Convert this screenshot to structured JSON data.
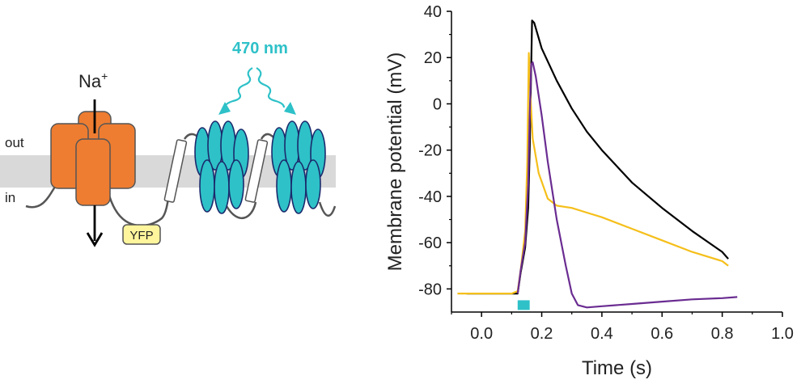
{
  "diagram": {
    "wavelength_label": "470 nm",
    "ion_label": "Na",
    "ion_charge": "+",
    "out_label": "out",
    "in_label": "in",
    "tag_label": "YFP",
    "colors": {
      "channel": "#ee7d31",
      "opsin": "#2ec1c8",
      "opsin_stroke": "#1a2a6c",
      "membrane": "#d9d9d9",
      "tag": "#fff59d",
      "light": "#2ec1c8"
    }
  },
  "chart_data": {
    "type": "line",
    "xlabel": "Time (s)",
    "ylabel": "Membrane potential (mV)",
    "xlim": [
      -0.1,
      1.0
    ],
    "ylim": [
      -90,
      40
    ],
    "xticks": [
      0.0,
      0.2,
      0.4,
      0.6,
      0.8,
      1.0
    ],
    "xtick_labels": [
      "0.0",
      "0.2",
      "0.4",
      "0.6",
      "0.8",
      "1.0"
    ],
    "yticks": [
      -80,
      -60,
      -40,
      -20,
      0,
      20,
      40
    ],
    "ytick_labels": [
      "-80",
      "-60",
      "-40",
      "-20",
      "0",
      "20",
      "40"
    ],
    "grid": false,
    "stimulus": {
      "start": 0.12,
      "end": 0.16,
      "y": -87,
      "color": "#2ec1c8"
    },
    "series": [
      {
        "color": "#000000",
        "points": [
          [
            -0.05,
            -82
          ],
          [
            0.0,
            -82
          ],
          [
            0.05,
            -82
          ],
          [
            0.1,
            -82
          ],
          [
            0.12,
            -82
          ],
          [
            0.13,
            -73
          ],
          [
            0.145,
            -62
          ],
          [
            0.155,
            -45
          ],
          [
            0.16,
            -20
          ],
          [
            0.165,
            15
          ],
          [
            0.168,
            36
          ],
          [
            0.175,
            35
          ],
          [
            0.2,
            24
          ],
          [
            0.25,
            10
          ],
          [
            0.3,
            -2
          ],
          [
            0.35,
            -12
          ],
          [
            0.4,
            -20
          ],
          [
            0.5,
            -34
          ],
          [
            0.6,
            -45
          ],
          [
            0.7,
            -55
          ],
          [
            0.8,
            -64
          ],
          [
            0.82,
            -67
          ]
        ]
      },
      {
        "color": "#f5bf1a",
        "points": [
          [
            -0.08,
            -82
          ],
          [
            0.0,
            -82
          ],
          [
            0.05,
            -82
          ],
          [
            0.1,
            -82
          ],
          [
            0.12,
            -81
          ],
          [
            0.13,
            -72
          ],
          [
            0.145,
            -55
          ],
          [
            0.152,
            -25
          ],
          [
            0.157,
            22
          ],
          [
            0.162,
            5
          ],
          [
            0.17,
            -15
          ],
          [
            0.19,
            -30
          ],
          [
            0.22,
            -41
          ],
          [
            0.25,
            -44
          ],
          [
            0.3,
            -45
          ],
          [
            0.35,
            -47
          ],
          [
            0.4,
            -49
          ],
          [
            0.5,
            -54
          ],
          [
            0.6,
            -59
          ],
          [
            0.7,
            -64
          ],
          [
            0.8,
            -68
          ],
          [
            0.82,
            -70
          ]
        ]
      },
      {
        "color": "#6a2c91",
        "points": [
          [
            0.12,
            -82
          ],
          [
            0.13,
            -72
          ],
          [
            0.145,
            -60
          ],
          [
            0.155,
            -35
          ],
          [
            0.16,
            -5
          ],
          [
            0.165,
            17
          ],
          [
            0.17,
            18
          ],
          [
            0.18,
            12
          ],
          [
            0.2,
            -5
          ],
          [
            0.22,
            -25
          ],
          [
            0.25,
            -50
          ],
          [
            0.28,
            -70
          ],
          [
            0.3,
            -82
          ],
          [
            0.32,
            -87
          ],
          [
            0.35,
            -88
          ],
          [
            0.4,
            -87.5
          ],
          [
            0.5,
            -86.5
          ],
          [
            0.6,
            -85.5
          ],
          [
            0.7,
            -84.5
          ],
          [
            0.8,
            -84
          ],
          [
            0.85,
            -83.5
          ]
        ]
      }
    ]
  }
}
